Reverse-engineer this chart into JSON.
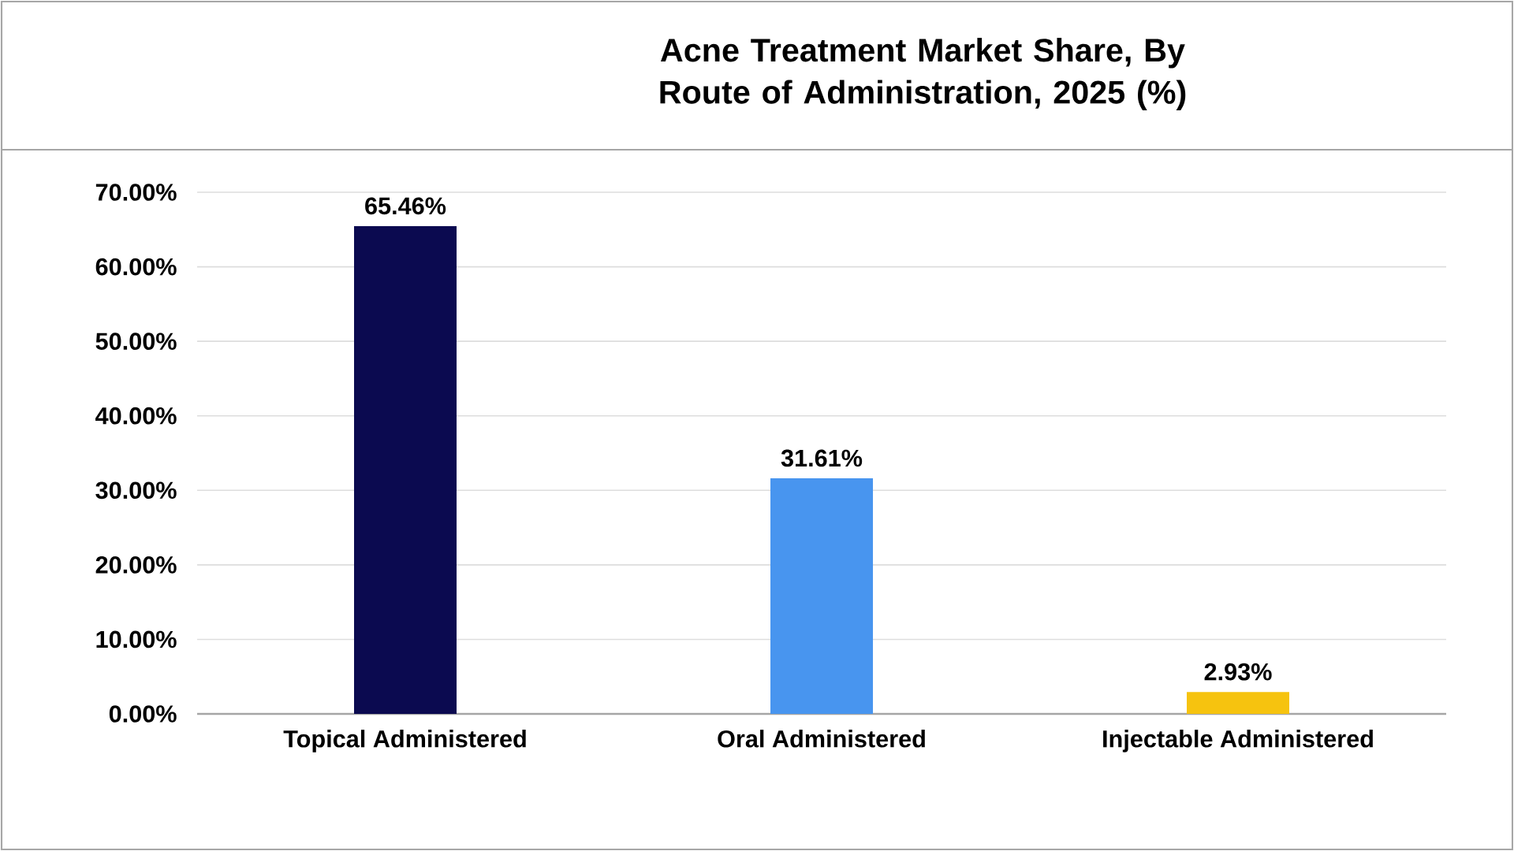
{
  "chart_data": {
    "type": "bar",
    "title": "Acne Treatment Market Share, By Route of Administration, 2025 (%)",
    "categories": [
      "Topical Administered",
      "Oral Administered",
      "Injectable Administered"
    ],
    "values": [
      65.46,
      31.61,
      2.93
    ],
    "colors": [
      "#0b0a50",
      "#4895ef",
      "#f6c30f"
    ],
    "value_labels": [
      "65.46%",
      "31.61%",
      "2.93%"
    ],
    "ylim": [
      0,
      70
    ],
    "yticks": [
      {
        "value": 0,
        "label": "0.00%"
      },
      {
        "value": 10,
        "label": "10.00%"
      },
      {
        "value": 20,
        "label": "20.00%"
      },
      {
        "value": 30,
        "label": "30.00%"
      },
      {
        "value": 40,
        "label": "40.00%"
      },
      {
        "value": 50,
        "label": "50.00%"
      },
      {
        "value": 60,
        "label": "60.00%"
      },
      {
        "value": 70,
        "label": "70.00%"
      }
    ],
    "grid": "y"
  }
}
